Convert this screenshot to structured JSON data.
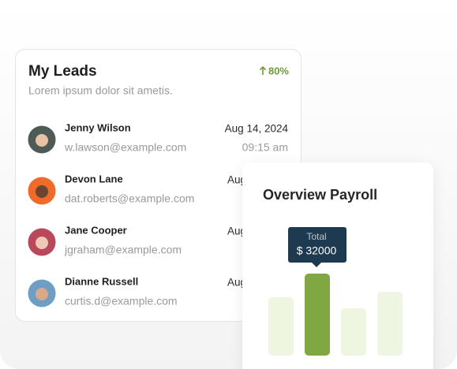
{
  "leads_card": {
    "title": "My Leads",
    "change": "80%",
    "subtitle": "Lorem ipsum dolor sit ametis.",
    "rows": [
      {
        "name": "Jenny Wilson",
        "email": "w.lawson@example.com",
        "date": "Aug 14, 2024",
        "time": "09:15 am"
      },
      {
        "name": "Devon Lane",
        "email": "dat.roberts@example.com",
        "date": "Aug"
      },
      {
        "name": "Jane Cooper",
        "email": "jgraham@example.com",
        "date": "Aug"
      },
      {
        "name": "Dianne Russell",
        "email": "curtis.d@example.com",
        "date": "Aug"
      }
    ]
  },
  "payroll_card": {
    "title": "Overview Payroll",
    "tooltip": {
      "label": "Total",
      "value": "$ 32000"
    }
  }
}
